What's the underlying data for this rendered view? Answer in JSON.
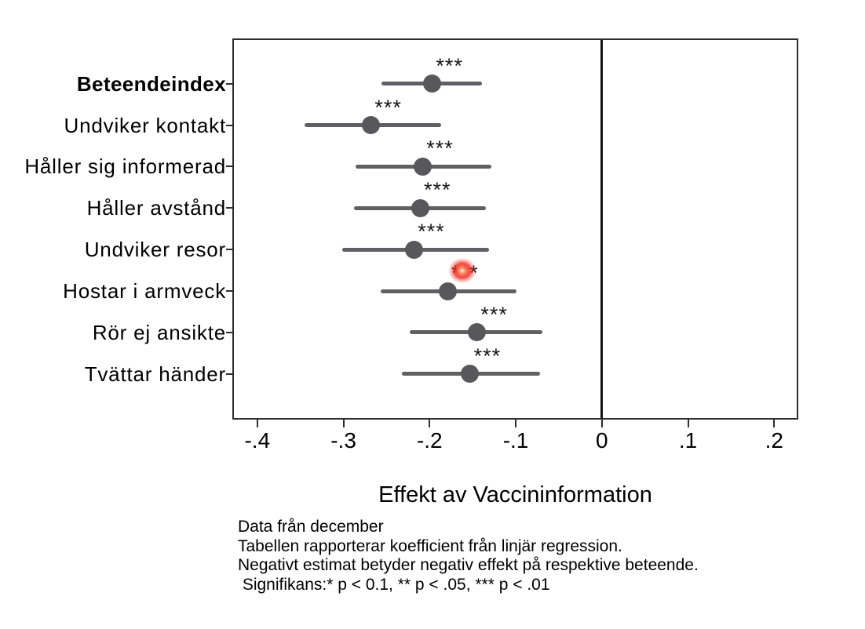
{
  "chart_data": {
    "type": "scatter",
    "variant": "coefficient-plot-with-confidence-intervals",
    "title": "",
    "xlabel": "Effekt av Vaccininformation",
    "ylabel": "",
    "xlim": [
      -0.429,
      0.228
    ],
    "grid": false,
    "legend_position": "none",
    "zero_reference_line": 0,
    "x_ticks": [
      {
        "value": -0.4,
        "label": "-.4"
      },
      {
        "value": -0.3,
        "label": "-.3"
      },
      {
        "value": -0.2,
        "label": "-.2"
      },
      {
        "value": -0.1,
        "label": "-.1"
      },
      {
        "value": 0,
        "label": "0"
      },
      {
        "value": 0.1,
        "label": ".1"
      },
      {
        "value": 0.2,
        "label": ".2"
      }
    ],
    "rows": [
      {
        "label": "Beteendeindex",
        "bold": true,
        "estimate": -0.197,
        "ci_low": -0.256,
        "ci_high": -0.139,
        "stars": "***",
        "click_highlight": false
      },
      {
        "label": "Undviker kontakt",
        "bold": false,
        "estimate": -0.268,
        "ci_low": -0.345,
        "ci_high": -0.187,
        "stars": "***",
        "click_highlight": false
      },
      {
        "label": "Håller sig informerad",
        "bold": false,
        "estimate": -0.208,
        "ci_low": -0.286,
        "ci_high": -0.128,
        "stars": "***",
        "click_highlight": false
      },
      {
        "label": "Håller avstånd",
        "bold": false,
        "estimate": -0.211,
        "ci_low": -0.288,
        "ci_high": -0.135,
        "stars": "***",
        "click_highlight": false
      },
      {
        "label": "Undviker resor",
        "bold": false,
        "estimate": -0.218,
        "ci_low": -0.301,
        "ci_high": -0.131,
        "stars": "***",
        "click_highlight": false
      },
      {
        "label": "Hostar i armveck",
        "bold": false,
        "estimate": -0.179,
        "ci_low": -0.257,
        "ci_high": -0.099,
        "stars": "***",
        "click_highlight": true
      },
      {
        "label": "Rör ej ansikte",
        "bold": false,
        "estimate": -0.145,
        "ci_low": -0.223,
        "ci_high": -0.069,
        "stars": "***",
        "click_highlight": false
      },
      {
        "label": "Tvättar händer",
        "bold": false,
        "estimate": -0.153,
        "ci_low": -0.232,
        "ci_high": -0.072,
        "stars": "***",
        "click_highlight": false
      }
    ]
  },
  "notes": [
    "Data från december",
    "Tabellen rapporterar koefficient från linjär regression.",
    "Negativt estimat betyder negativ effekt på respektive beteende.",
    " Signifikans:* p < 0.1, ** p < .05, *** p < .01"
  ],
  "colors": {
    "axis": "#2e2e30",
    "zero_line": "#141414",
    "ci_line": "#606064",
    "marker": "#58585a",
    "click_glow": "#ee1e14",
    "text": "#000000"
  }
}
